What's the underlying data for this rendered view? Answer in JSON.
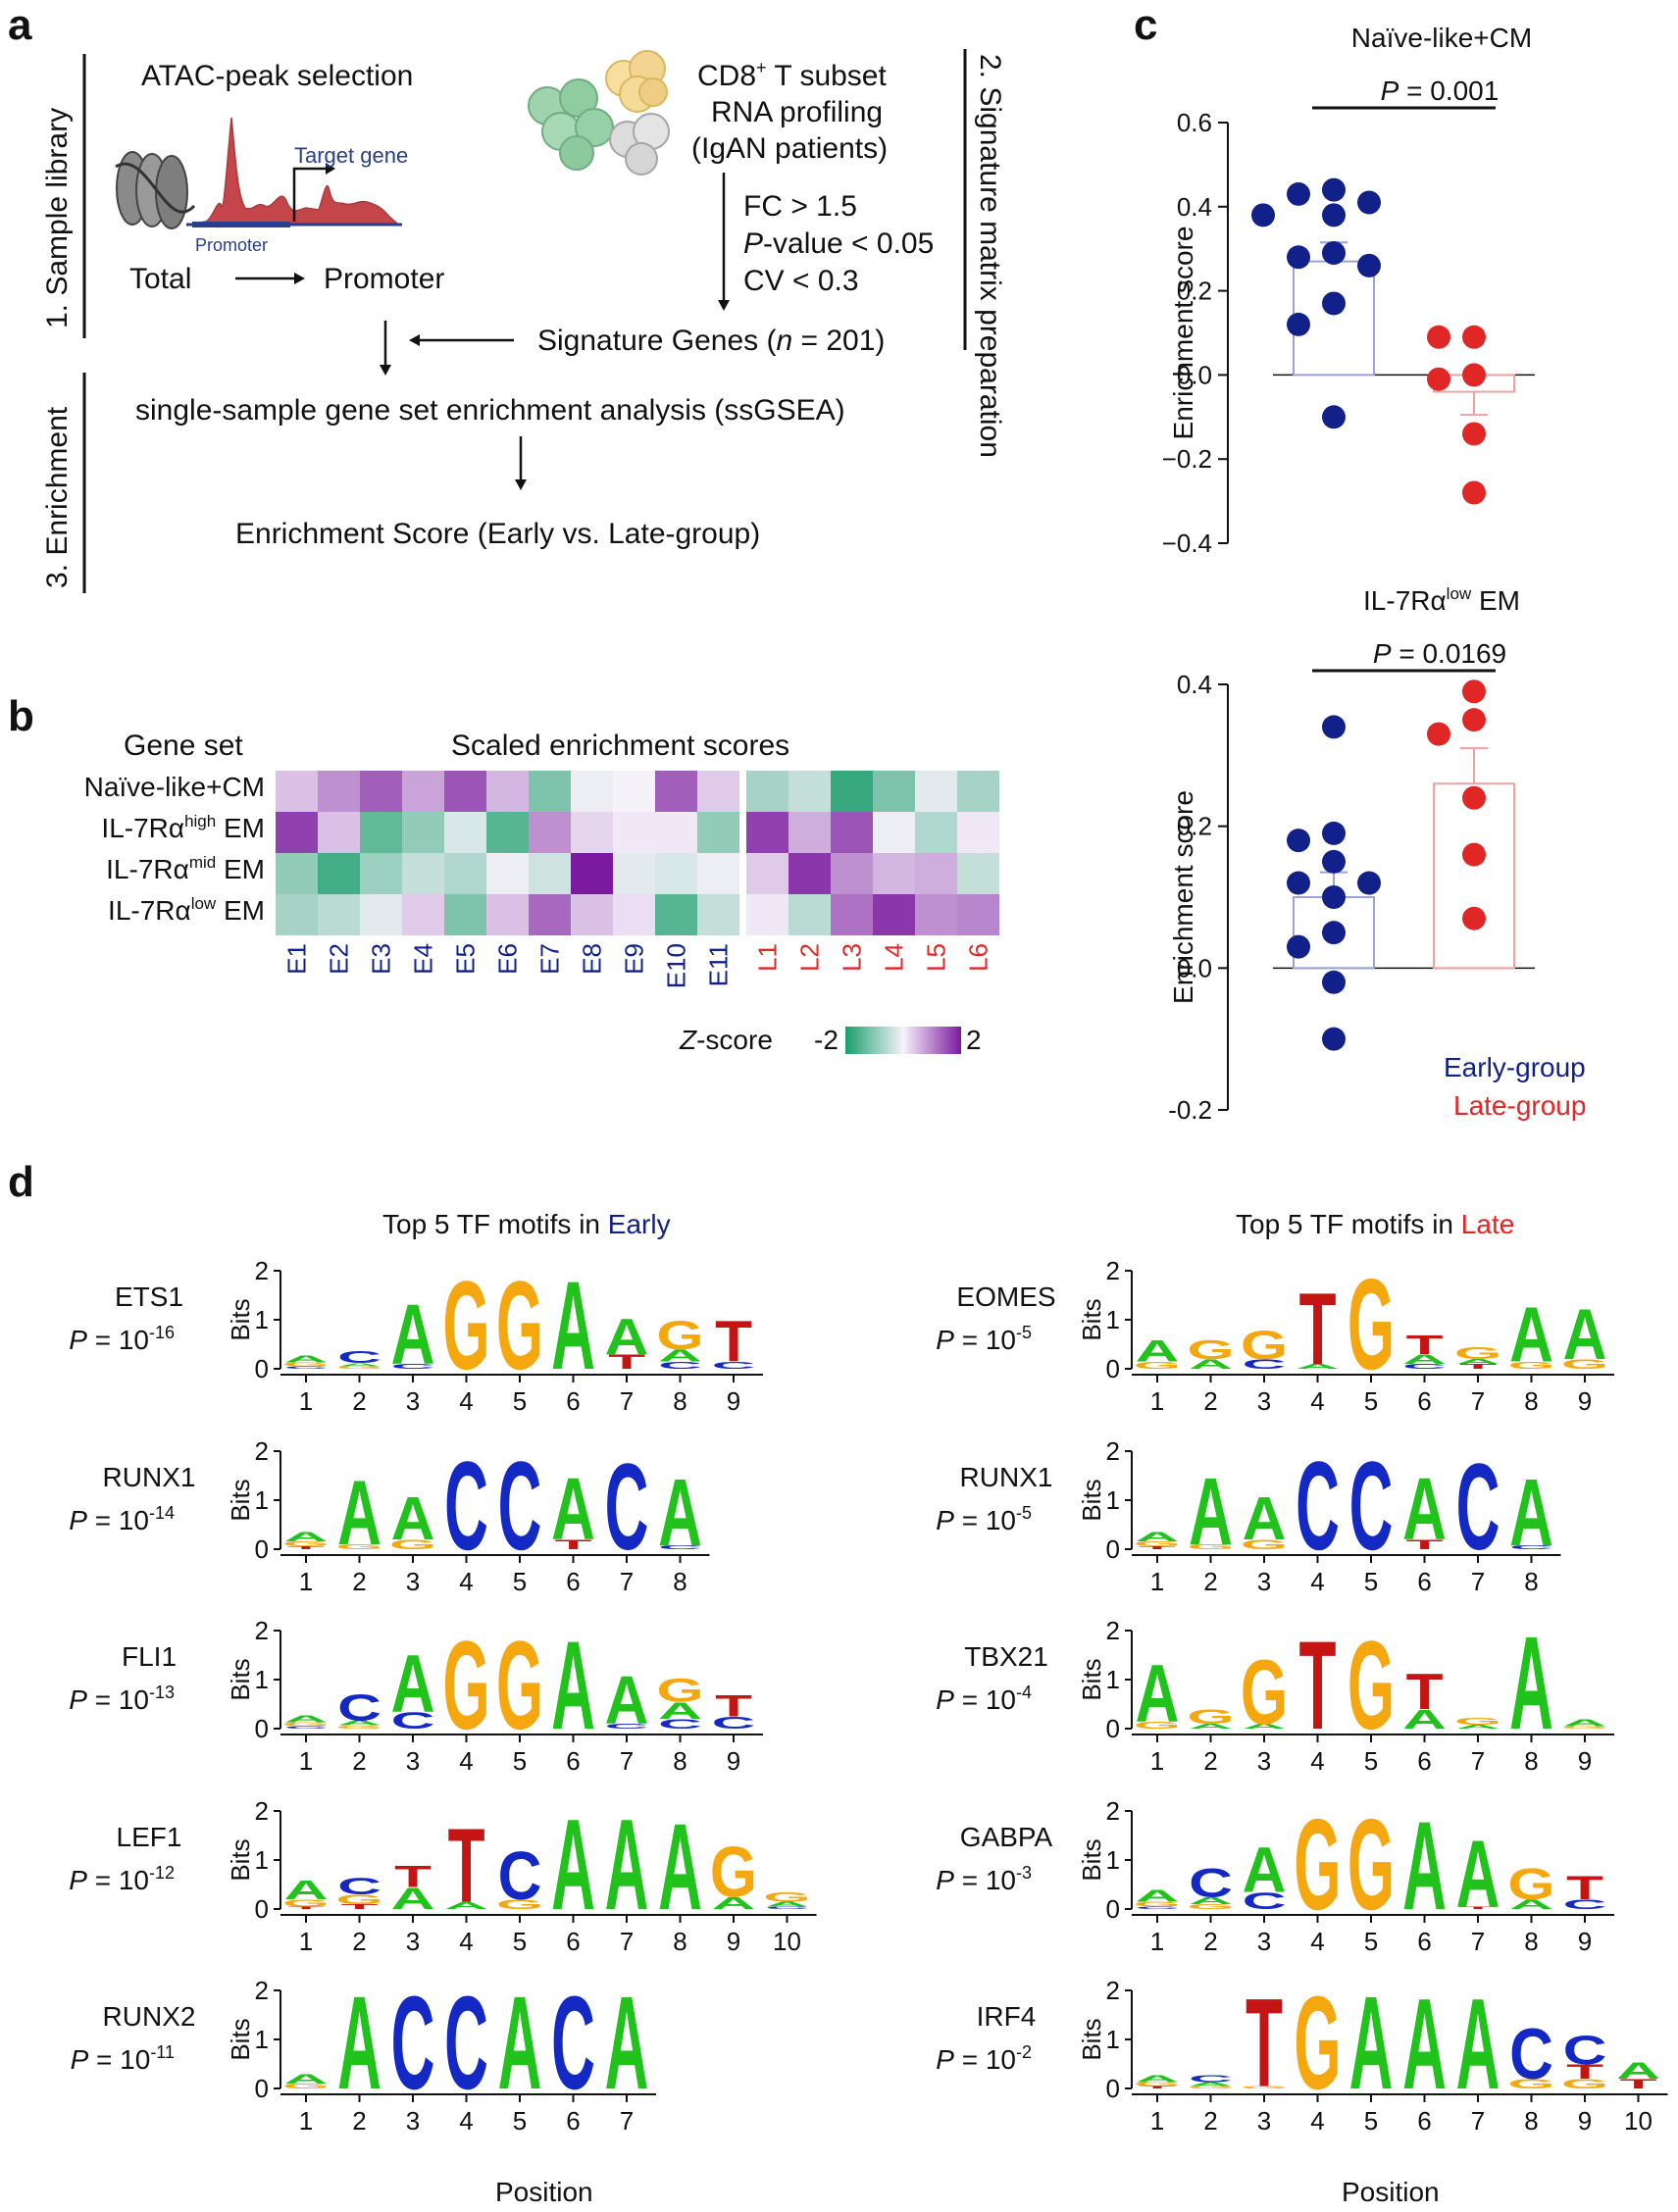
{
  "colors": {
    "early": "#12208a",
    "late": "#e12626",
    "heat_low": "#1a9e6c",
    "heat_mid": "#f6f2fa",
    "heat_high": "#7a1a9e",
    "A": "#22c21d",
    "C": "#1428c4",
    "G": "#f5a70f",
    "T": "#c41414",
    "peak": "#c4464a",
    "promoter_line": "#283e8f"
  },
  "panel_a": {
    "letter": "a",
    "side_labels": [
      "1. Sample library",
      "3. Enrichment",
      "2. Signature matrix preparation"
    ],
    "atac_title": "ATAC-peak selection",
    "target_gene": "Target gene",
    "promoter_caption": "Promoter",
    "total": "Total",
    "promoter": "Promoter",
    "cd8_title": "CD8",
    "cd8_sup": "+",
    "cd8_rest": " T subset",
    "rna_profiling": "RNA profiling",
    "patients": "(IgAN patients)",
    "fc": "FC > 1.5",
    "pvalue_p": "P",
    "pvalue_rest": "-value < 0.05",
    "cv": "CV < 0.3",
    "signature_prefix": "Signature Genes (",
    "signature_n": "n",
    "signature_suffix": " = 201)",
    "ssgsea": "single-sample gene set enrichment analysis (ssGSEA)",
    "enrichment_score": "Enrichment Score (Early vs. Late-group)"
  },
  "panel_b": {
    "letter": "b",
    "gene_set_header": "Gene set",
    "heatmap_title": "Scaled enrichment scores",
    "rows": [
      {
        "base": "Naïve-like+CM",
        "sup": "",
        "tail": ""
      },
      {
        "base": "IL-7Rα",
        "sup": "high",
        "tail": " EM"
      },
      {
        "base": "IL-7Rα",
        "sup": "mid",
        "tail": " EM"
      },
      {
        "base": "IL-7Rα",
        "sup": "low",
        "tail": " EM"
      }
    ],
    "early_samples": [
      "E1",
      "E2",
      "E3",
      "E4",
      "E5",
      "E6",
      "E7",
      "E8",
      "E9",
      "E10",
      "E11"
    ],
    "late_samples": [
      "L1",
      "L2",
      "L3",
      "L4",
      "L5",
      "L6"
    ],
    "zscore_label_italic": "Z",
    "zscore_label_rest": "-score",
    "zscore_min": "-2",
    "zscore_max": "2",
    "z_early": [
      [
        0.5,
        1.0,
        1.5,
        0.8,
        1.6,
        0.6,
        -1.2,
        -0.1,
        0.0,
        1.5,
        0.4
      ],
      [
        1.8,
        0.5,
        -1.5,
        -1.0,
        -0.3,
        -1.6,
        1.0,
        0.3,
        0.1,
        0.1,
        -1.0
      ],
      [
        -1.0,
        -1.8,
        -0.9,
        -0.5,
        -0.7,
        -0.1,
        -0.4,
        2.2,
        -0.2,
        -0.3,
        -0.1
      ],
      [
        -0.8,
        -0.6,
        -0.2,
        0.4,
        -1.2,
        0.5,
        1.4,
        0.5,
        0.2,
        -1.6,
        -0.5
      ]
    ],
    "z_late": [
      [
        -0.8,
        -0.5,
        -1.9,
        -1.2,
        -0.2,
        -0.8
      ],
      [
        1.8,
        0.7,
        1.6,
        -0.1,
        -0.7,
        0.1
      ],
      [
        0.4,
        1.9,
        1.0,
        0.6,
        0.7,
        -0.5
      ],
      [
        0.1,
        -0.6,
        1.3,
        1.9,
        1.0,
        1.1
      ]
    ]
  },
  "panel_c": {
    "letter": "c",
    "legend_early": "Early-group",
    "legend_late": "Late-group"
  },
  "chart_data": [
    {
      "type": "scatter",
      "title": "Naïve-like+CM",
      "ylabel": "Enrichment score",
      "p_italic": "P",
      "p_rest": " = 0.001",
      "ylim": [
        -0.4,
        0.6
      ],
      "yticks": [
        "0.6",
        "0.4",
        "0.2",
        "0.0",
        "−0.2",
        "−0.4"
      ],
      "ytick_values": [
        0.6,
        0.4,
        0.2,
        0.0,
        -0.2,
        -0.4
      ],
      "series": [
        {
          "name": "Early-group",
          "mean": 0.27,
          "sem": 0.045,
          "values": [
            0.44,
            0.43,
            0.41,
            0.38,
            0.38,
            0.29,
            0.28,
            0.26,
            0.17,
            0.12,
            -0.1
          ]
        },
        {
          "name": "Late-group",
          "mean": -0.04,
          "sem": 0.055,
          "values": [
            0.09,
            0.09,
            0.0,
            -0.01,
            -0.14,
            -0.28
          ]
        }
      ]
    },
    {
      "type": "scatter",
      "title_base": "IL-7Rα",
      "title_sup": "low",
      "title_tail": " EM",
      "ylabel": "Enrichment score",
      "p_italic": "P",
      "p_rest": " = 0.0169",
      "ylim": [
        -0.2,
        0.4
      ],
      "yticks": [
        "0.4",
        "0.2",
        "0.0",
        "-0.2"
      ],
      "ytick_values": [
        0.4,
        0.2,
        0.0,
        -0.2
      ],
      "series": [
        {
          "name": "Early-group",
          "mean": 0.1,
          "sem": 0.035,
          "values": [
            0.34,
            0.19,
            0.18,
            0.15,
            0.12,
            0.12,
            0.1,
            0.05,
            0.03,
            -0.02,
            -0.1
          ]
        },
        {
          "name": "Late-group",
          "mean": 0.26,
          "sem": 0.05,
          "values": [
            0.39,
            0.35,
            0.33,
            0.24,
            0.16,
            0.07
          ]
        }
      ]
    }
  ],
  "panel_d": {
    "letter": "d",
    "early_title_prefix": "Top 5 TF motifs in ",
    "early_title_word": "Early",
    "late_title_prefix": "Top 5 TF motifs in ",
    "late_title_word": "Late",
    "bits_label": "Bits",
    "position_label": "Position",
    "y_ticks": [
      "2",
      "1",
      "0"
    ],
    "early": [
      {
        "tf": "ETS1",
        "p": "P",
        "p_base": " = 10",
        "p_exp": "-16",
        "positions": [
          [
            [
              "A",
              0.15
            ],
            [
              "G",
              0.08
            ],
            [
              "C",
              0.05
            ]
          ],
          [
            [
              "C",
              0.25
            ],
            [
              "A",
              0.07
            ],
            [
              "G",
              0.05
            ]
          ],
          [
            [
              "A",
              1.25
            ],
            [
              "C",
              0.1
            ]
          ],
          [
            [
              "G",
              1.85
            ]
          ],
          [
            [
              "G",
              1.85
            ]
          ],
          [
            [
              "A",
              1.85
            ]
          ],
          [
            [
              "A",
              0.75
            ],
            [
              "T",
              0.3
            ]
          ],
          [
            [
              "G",
              0.6
            ],
            [
              "A",
              0.25
            ],
            [
              "C",
              0.15
            ]
          ],
          [
            [
              "T",
              0.85
            ],
            [
              "C",
              0.15
            ]
          ]
        ]
      },
      {
        "tf": "RUNX1",
        "p": "P",
        "p_base": " = 10",
        "p_exp": "-14",
        "positions": [
          [
            [
              "A",
              0.2
            ],
            [
              "G",
              0.1
            ],
            [
              "T",
              0.06
            ]
          ],
          [
            [
              "A",
              1.35
            ],
            [
              "G",
              0.1
            ]
          ],
          [
            [
              "A",
              0.9
            ],
            [
              "G",
              0.2
            ]
          ],
          [
            [
              "C",
              1.85
            ]
          ],
          [
            [
              "C",
              1.85
            ]
          ],
          [
            [
              "A",
              1.3
            ],
            [
              "T",
              0.2
            ]
          ],
          [
            [
              "C",
              1.8
            ]
          ],
          [
            [
              "A",
              1.4
            ],
            [
              "C",
              0.08
            ]
          ]
        ]
      },
      {
        "tf": "FLI1",
        "p": "P",
        "p_base": " = 10",
        "p_exp": "-13",
        "positions": [
          [
            [
              "A",
              0.15
            ],
            [
              "G",
              0.08
            ],
            [
              "C",
              0.05
            ]
          ],
          [
            [
              "C",
              0.55
            ],
            [
              "A",
              0.1
            ],
            [
              "G",
              0.07
            ]
          ],
          [
            [
              "A",
              1.2
            ],
            [
              "C",
              0.35
            ]
          ],
          [
            [
              "G",
              1.85
            ]
          ],
          [
            [
              "G",
              1.85
            ]
          ],
          [
            [
              "A",
              1.85
            ]
          ],
          [
            [
              "A",
              1.0
            ],
            [
              "C",
              0.1
            ]
          ],
          [
            [
              "G",
              0.5
            ],
            [
              "A",
              0.35
            ],
            [
              "C",
              0.2
            ]
          ],
          [
            [
              "T",
              0.45
            ],
            [
              "C",
              0.25
            ]
          ]
        ]
      },
      {
        "tf": "LEF1",
        "p": "P",
        "p_base": " = 10",
        "p_exp": "-12",
        "positions": [
          [
            [
              "A",
              0.4
            ],
            [
              "G",
              0.15
            ],
            [
              "T",
              0.05
            ]
          ],
          [
            [
              "C",
              0.35
            ],
            [
              "G",
              0.2
            ],
            [
              "T",
              0.1
            ]
          ],
          [
            [
              "A",
              0.45
            ],
            [
              "T",
              0.45
            ]
          ],
          [
            [
              "T",
              1.55
            ],
            [
              "A",
              0.15
            ]
          ],
          [
            [
              "C",
              1.0
            ],
            [
              "G",
              0.2
            ]
          ],
          [
            [
              "A",
              1.9
            ]
          ],
          [
            [
              "A",
              1.9
            ]
          ],
          [
            [
              "A",
              1.8
            ]
          ],
          [
            [
              "G",
              1.05
            ],
            [
              "A",
              0.25
            ]
          ],
          [
            [
              "G",
              0.2
            ],
            [
              "A",
              0.1
            ],
            [
              "C",
              0.05
            ]
          ]
        ]
      },
      {
        "tf": "RUNX2",
        "p": "P",
        "p_base": " = 10",
        "p_exp": "-11",
        "positions": [
          [
            [
              "A",
              0.2
            ],
            [
              "G",
              0.1
            ]
          ],
          [
            [
              "A",
              1.95
            ]
          ],
          [
            [
              "C",
              1.95
            ]
          ],
          [
            [
              "C",
              1.95
            ]
          ],
          [
            [
              "A",
              1.95
            ]
          ],
          [
            [
              "C",
              1.95
            ]
          ],
          [
            [
              "A",
              1.95
            ]
          ]
        ]
      }
    ],
    "late": [
      {
        "tf": "EOMES",
        "p": "P",
        "p_base": " = 10",
        "p_exp": "-5",
        "positions": [
          [
            [
              "A",
              0.45
            ],
            [
              "G",
              0.15
            ]
          ],
          [
            [
              "G",
              0.4
            ],
            [
              "A",
              0.2
            ]
          ],
          [
            [
              "G",
              0.6
            ],
            [
              "C",
              0.2
            ]
          ],
          [
            [
              "T",
              1.5
            ],
            [
              "A",
              0.1
            ]
          ],
          [
            [
              "G",
              1.9
            ]
          ],
          [
            [
              "T",
              0.4
            ],
            [
              "A",
              0.2
            ],
            [
              "C",
              0.1
            ]
          ],
          [
            [
              "G",
              0.25
            ],
            [
              "T",
              0.1
            ],
            [
              "A",
              0.1
            ]
          ],
          [
            [
              "A",
              1.15
            ],
            [
              "G",
              0.15
            ]
          ],
          [
            [
              "A",
              1.05
            ],
            [
              "G",
              0.2
            ]
          ]
        ]
      },
      {
        "tf": "RUNX1",
        "p": "P",
        "p_base": " = 10",
        "p_exp": "-5",
        "positions": [
          [
            [
              "A",
              0.2
            ],
            [
              "G",
              0.1
            ],
            [
              "T",
              0.06
            ]
          ],
          [
            [
              "A",
              1.4
            ],
            [
              "G",
              0.1
            ]
          ],
          [
            [
              "A",
              0.9
            ],
            [
              "G",
              0.2
            ]
          ],
          [
            [
              "C",
              1.85
            ]
          ],
          [
            [
              "C",
              1.85
            ]
          ],
          [
            [
              "A",
              1.3
            ],
            [
              "T",
              0.2
            ]
          ],
          [
            [
              "C",
              1.8
            ]
          ],
          [
            [
              "A",
              1.4
            ],
            [
              "C",
              0.08
            ]
          ]
        ]
      },
      {
        "tf": "TBX21",
        "p": "P",
        "p_base": " = 10",
        "p_exp": "-4",
        "positions": [
          [
            [
              "A",
              1.2
            ],
            [
              "G",
              0.15
            ]
          ],
          [
            [
              "G",
              0.3
            ],
            [
              "A",
              0.1
            ]
          ],
          [
            [
              "G",
              1.35
            ],
            [
              "A",
              0.1
            ]
          ],
          [
            [
              "T",
              1.85
            ]
          ],
          [
            [
              "G",
              1.85
            ]
          ],
          [
            [
              "T",
              0.75
            ],
            [
              "A",
              0.4
            ]
          ],
          [
            [
              "G",
              0.15
            ],
            [
              "A",
              0.08
            ]
          ],
          [
            [
              "A",
              1.95
            ]
          ],
          [
            [
              "A",
              0.15
            ],
            [
              "G",
              0.05
            ]
          ]
        ]
      },
      {
        "tf": "GABPA",
        "p": "P",
        "p_base": " = 10",
        "p_exp": "-3",
        "positions": [
          [
            [
              "A",
              0.25
            ],
            [
              "G",
              0.1
            ],
            [
              "C",
              0.05
            ]
          ],
          [
            [
              "C",
              0.6
            ],
            [
              "A",
              0.15
            ],
            [
              "G",
              0.1
            ]
          ],
          [
            [
              "A",
              0.95
            ],
            [
              "C",
              0.35
            ]
          ],
          [
            [
              "G",
              1.9
            ]
          ],
          [
            [
              "G",
              1.9
            ]
          ],
          [
            [
              "A",
              1.85
            ]
          ],
          [
            [
              "A",
              1.4
            ],
            [
              "T",
              0.05
            ]
          ],
          [
            [
              "G",
              0.65
            ],
            [
              "A",
              0.2
            ]
          ],
          [
            [
              "T",
              0.5
            ],
            [
              "C",
              0.2
            ]
          ]
        ]
      },
      {
        "tf": "IRF4",
        "p": "P",
        "p_base": " = 10",
        "p_exp": "-2",
        "positions": [
          [
            [
              "A",
              0.15
            ],
            [
              "G",
              0.08
            ],
            [
              "T",
              0.05
            ]
          ],
          [
            [
              "C",
              0.15
            ],
            [
              "A",
              0.08
            ],
            [
              "G",
              0.05
            ]
          ],
          [
            [
              "T",
              1.85
            ],
            [
              "G",
              0.05
            ]
          ],
          [
            [
              "G",
              1.95
            ]
          ],
          [
            [
              "A",
              1.95
            ]
          ],
          [
            [
              "A",
              1.9
            ]
          ],
          [
            [
              "A",
              1.9
            ]
          ],
          [
            [
              "C",
              1.05
            ],
            [
              "G",
              0.2
            ]
          ],
          [
            [
              "C",
              0.6
            ],
            [
              "T",
              0.3
            ],
            [
              "G",
              0.2
            ]
          ],
          [
            [
              "A",
              0.35
            ],
            [
              "T",
              0.2
            ]
          ]
        ]
      }
    ]
  }
}
